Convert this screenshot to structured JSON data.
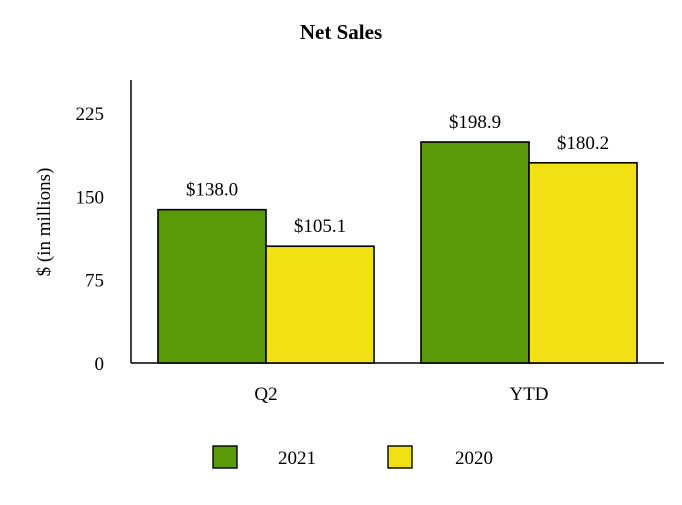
{
  "chart_data": {
    "type": "bar",
    "title": "Net Sales",
    "ylabel": "$ (in millions)",
    "xlabel": "",
    "categories": [
      "Q2",
      "YTD"
    ],
    "series": [
      {
        "name": "2021",
        "color": "#5a9a08",
        "values": [
          138.0,
          198.9
        ],
        "labels": [
          "$138.0",
          "$198.9"
        ]
      },
      {
        "name": "2020",
        "color": "#f0e014",
        "values": [
          105.1,
          180.2
        ],
        "labels": [
          "$105.1",
          "$180.2"
        ]
      }
    ],
    "ylim": [
      0,
      250
    ],
    "yticks": [
      0,
      75,
      150,
      225
    ],
    "ytick_labels": [
      "0",
      "75",
      "150",
      "225"
    ],
    "grid": false,
    "legend_position": "bottom"
  }
}
